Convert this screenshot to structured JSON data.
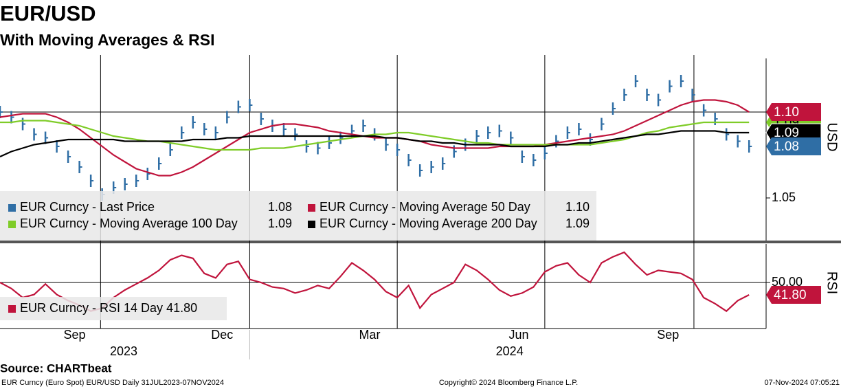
{
  "title": "EUR/USD",
  "subtitle": "With Moving Averages & RSI",
  "source": "Source: CHARTbeat",
  "footer": {
    "left": "EUR Curncy (Euro Spot) EUR/USD  Daily 31JUL2023-07NOV2024",
    "center": "Copyright© 2024 Bloomberg Finance L.P.",
    "right": "07-Nov-2024 07:05:21"
  },
  "chart_data": [
    {
      "type": "line",
      "ylabel": "USD",
      "categories": [
        null,
        null,
        null,
        null,
        null,
        null,
        null,
        null,
        null,
        null,
        null,
        null,
        null,
        null,
        null,
        null,
        null,
        null,
        null,
        null,
        null,
        null,
        null,
        null,
        null,
        null,
        null,
        null,
        null,
        null,
        null,
        null,
        null,
        null,
        null,
        null,
        null,
        null,
        null,
        null,
        null,
        null,
        null,
        null,
        null,
        null,
        null,
        null,
        null,
        null,
        null,
        null,
        null,
        null,
        null,
        null,
        null,
        null,
        null,
        null,
        null,
        null,
        null,
        null,
        null,
        null,
        null
      ],
      "xlim": [
        0,
        67.5
      ],
      "xgrid": [
        8.86,
        22,
        35,
        48,
        61.14
      ],
      "ylim": [
        1.0252,
        1.1312
      ],
      "yticks": [
        1.05
      ],
      "hlines": [
        1.1
      ],
      "series": [
        {
          "name": "EUR Curncy - Last Price",
          "color": "#2f6ea5",
          "mark": "bar",
          "last_label": "1.08",
          "values": [
            1.1,
            1.097,
            1.093,
            1.087,
            1.085,
            1.08,
            1.074,
            1.068,
            1.06,
            1.052,
            1.056,
            1.058,
            1.06,
            1.064,
            1.07,
            1.078,
            1.088,
            1.094,
            1.09,
            1.088,
            1.097,
            1.103,
            1.104,
            1.096,
            1.092,
            1.09,
            1.087,
            1.08,
            1.079,
            1.082,
            1.085,
            1.089,
            1.092,
            1.087,
            1.081,
            1.078,
            1.072,
            1.066,
            1.068,
            1.07,
            1.077,
            1.081,
            1.086,
            1.088,
            1.089,
            1.085,
            1.074,
            1.072,
            1.076,
            1.083,
            1.088,
            1.09,
            1.084,
            1.093,
            1.102,
            1.11,
            1.118,
            1.11,
            1.107,
            1.115,
            1.118,
            1.11,
            1.101,
            1.096,
            1.087,
            1.083,
            1.08
          ]
        },
        {
          "name": "EUR Curncy - Moving Average 50 Day",
          "color": "#c0143c",
          "last_label": "1.10",
          "values": [
            1.097,
            1.098,
            1.099,
            1.099,
            1.099,
            1.097,
            1.094,
            1.09,
            1.085,
            1.08,
            1.075,
            1.071,
            1.067,
            1.065,
            1.063,
            1.063,
            1.065,
            1.068,
            1.072,
            1.076,
            1.08,
            1.084,
            1.088,
            1.09,
            1.092,
            1.093,
            1.093,
            1.092,
            1.091,
            1.089,
            1.088,
            1.087,
            1.086,
            1.085,
            1.085,
            1.085,
            1.084,
            1.083,
            1.081,
            1.08,
            1.079,
            1.079,
            1.079,
            1.079,
            1.08,
            1.08,
            1.08,
            1.08,
            1.081,
            1.082,
            1.083,
            1.084,
            1.085,
            1.086,
            1.087,
            1.089,
            1.092,
            1.095,
            1.098,
            1.101,
            1.104,
            1.106,
            1.107,
            1.107,
            1.106,
            1.104,
            1.1
          ]
        },
        {
          "name": "EUR Curncy - Moving Average 100 Day",
          "color": "#7fcc28",
          "last_label": "1.09",
          "values": [
            1.094,
            1.094,
            1.095,
            1.095,
            1.095,
            1.094,
            1.093,
            1.092,
            1.09,
            1.088,
            1.086,
            1.085,
            1.084,
            1.083,
            1.083,
            1.082,
            1.081,
            1.08,
            1.079,
            1.078,
            1.078,
            1.078,
            1.078,
            1.079,
            1.079,
            1.079,
            1.08,
            1.081,
            1.082,
            1.083,
            1.084,
            1.085,
            1.086,
            1.087,
            1.087,
            1.088,
            1.088,
            1.087,
            1.086,
            1.085,
            1.084,
            1.083,
            1.082,
            1.082,
            1.081,
            1.081,
            1.081,
            1.081,
            1.081,
            1.081,
            1.081,
            1.081,
            1.081,
            1.082,
            1.083,
            1.084,
            1.086,
            1.088,
            1.089,
            1.091,
            1.092,
            1.093,
            1.094,
            1.094,
            1.094,
            1.094,
            1.094
          ]
        },
        {
          "name": "EUR Curncy - Moving Average 200 Day",
          "color": "#000000",
          "last_label": "1.09",
          "values": [
            1.074,
            1.077,
            1.079,
            1.081,
            1.082,
            1.083,
            1.084,
            1.084,
            1.084,
            1.084,
            1.084,
            1.083,
            1.083,
            1.083,
            1.083,
            1.083,
            1.083,
            1.084,
            1.084,
            1.084,
            1.085,
            1.085,
            1.086,
            1.086,
            1.086,
            1.086,
            1.086,
            1.086,
            1.086,
            1.086,
            1.086,
            1.086,
            1.086,
            1.086,
            1.085,
            1.085,
            1.084,
            1.083,
            1.083,
            1.082,
            1.082,
            1.081,
            1.081,
            1.081,
            1.081,
            1.08,
            1.08,
            1.08,
            1.08,
            1.081,
            1.081,
            1.082,
            1.082,
            1.083,
            1.084,
            1.085,
            1.086,
            1.087,
            1.087,
            1.088,
            1.089,
            1.089,
            1.089,
            1.089,
            1.088,
            1.088,
            1.088
          ]
        }
      ]
    },
    {
      "type": "line",
      "ylabel": "RSI",
      "categories": [
        null,
        null,
        null,
        null,
        null,
        null,
        null,
        null,
        null,
        null,
        null,
        null,
        null,
        null,
        null,
        null,
        null,
        null,
        null,
        null,
        null,
        null,
        null,
        null,
        null,
        null,
        null,
        null,
        null,
        null,
        null,
        null,
        null,
        null,
        null,
        null,
        null,
        null,
        null,
        null,
        null,
        null,
        null,
        null,
        null,
        null,
        null,
        null,
        null,
        null,
        null,
        null,
        null,
        null,
        null,
        null,
        null,
        null,
        null,
        null,
        null,
        null,
        null,
        null,
        null,
        null,
        null
      ],
      "xlim": [
        0,
        67.5
      ],
      "xticks": [
        {
          "value": 6.57,
          "label": "Sep"
        },
        {
          "value": 19.57,
          "label": "Dec"
        },
        {
          "value": 32.57,
          "label": "Mar"
        },
        {
          "value": 45.71,
          "label": "Jun"
        },
        {
          "value": 58.86,
          "label": "Sep"
        }
      ],
      "year_labels": [
        {
          "value": 10.9,
          "label": "2023"
        },
        {
          "value": 44.9,
          "label": "2024"
        }
      ],
      "year_separator": 22,
      "ylim": [
        19.5,
        75.5
      ],
      "yticks": [
        {
          "value": 50,
          "label": "50.00"
        }
      ],
      "series": [
        {
          "name": "EUR Curncy - RSI 14 Day",
          "color": "#c0143c",
          "last_label": "41.80",
          "values": [
            50,
            46,
            40,
            42,
            49,
            42,
            38,
            35,
            31,
            33,
            40,
            45,
            49,
            53,
            58,
            65,
            68,
            66,
            56,
            53,
            62,
            64,
            52,
            50,
            47,
            46,
            43,
            45,
            48,
            46,
            54,
            63,
            58,
            52,
            44,
            40,
            48,
            33,
            42,
            46,
            50,
            62,
            58,
            52,
            45,
            41,
            43,
            47,
            57,
            61,
            63,
            55,
            50,
            63,
            67,
            70,
            62,
            55,
            58,
            57,
            56,
            52,
            40,
            36,
            31,
            38,
            41.8
          ]
        }
      ]
    }
  ]
}
